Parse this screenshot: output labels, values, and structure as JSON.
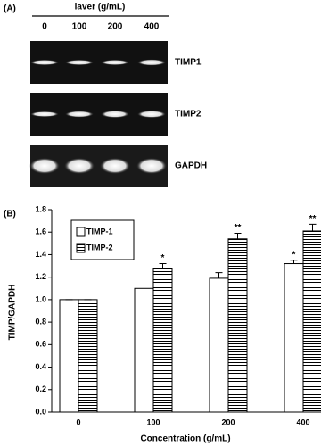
{
  "panel_a": {
    "label": "(A)",
    "treatment": "laver (g/mL)",
    "lanes": [
      "0",
      "100",
      "200",
      "400"
    ],
    "bands": [
      "TIMP1",
      "TIMP2",
      "GAPDH"
    ]
  },
  "chart_data": {
    "type": "bar",
    "panel_label": "(B)",
    "x_label": "Concentration (g/mL)",
    "y_label": "TIMP/GAPDH",
    "categories": [
      "0",
      "100",
      "200",
      "400"
    ],
    "series": [
      {
        "name": "TIMP-1",
        "color": "#ffffff",
        "hatch": "none",
        "values": [
          1.0,
          1.1,
          1.19,
          1.32
        ],
        "errors": [
          0.0,
          0.03,
          0.05,
          0.03
        ],
        "markers": [
          null,
          null,
          null,
          "*"
        ]
      },
      {
        "name": "TIMP-2",
        "color": "#ffffff",
        "hatch": "horizontal",
        "values": [
          1.0,
          1.28,
          1.54,
          1.61
        ],
        "errors": [
          0.0,
          0.04,
          0.05,
          0.06
        ],
        "markers": [
          null,
          "*",
          "**",
          "**"
        ]
      }
    ],
    "ylim": [
      0,
      1.8
    ],
    "yticks": [
      {
        "value": 0,
        "label": "0.0"
      },
      {
        "value": 0.2,
        "label": "0.2"
      },
      {
        "value": 0.4,
        "label": "0.4"
      },
      {
        "value": 0.6,
        "label": "0.6"
      },
      {
        "value": 0.8,
        "label": "0.8"
      },
      {
        "value": 1.0,
        "label": "1.0"
      },
      {
        "value": 1.2,
        "label": "1.2"
      },
      {
        "value": 1.4,
        "label": "1.4"
      },
      {
        "value": 1.6,
        "label": "1.6"
      },
      {
        "value": 1.8,
        "label": "1.8"
      }
    ],
    "legend": "top-left"
  }
}
